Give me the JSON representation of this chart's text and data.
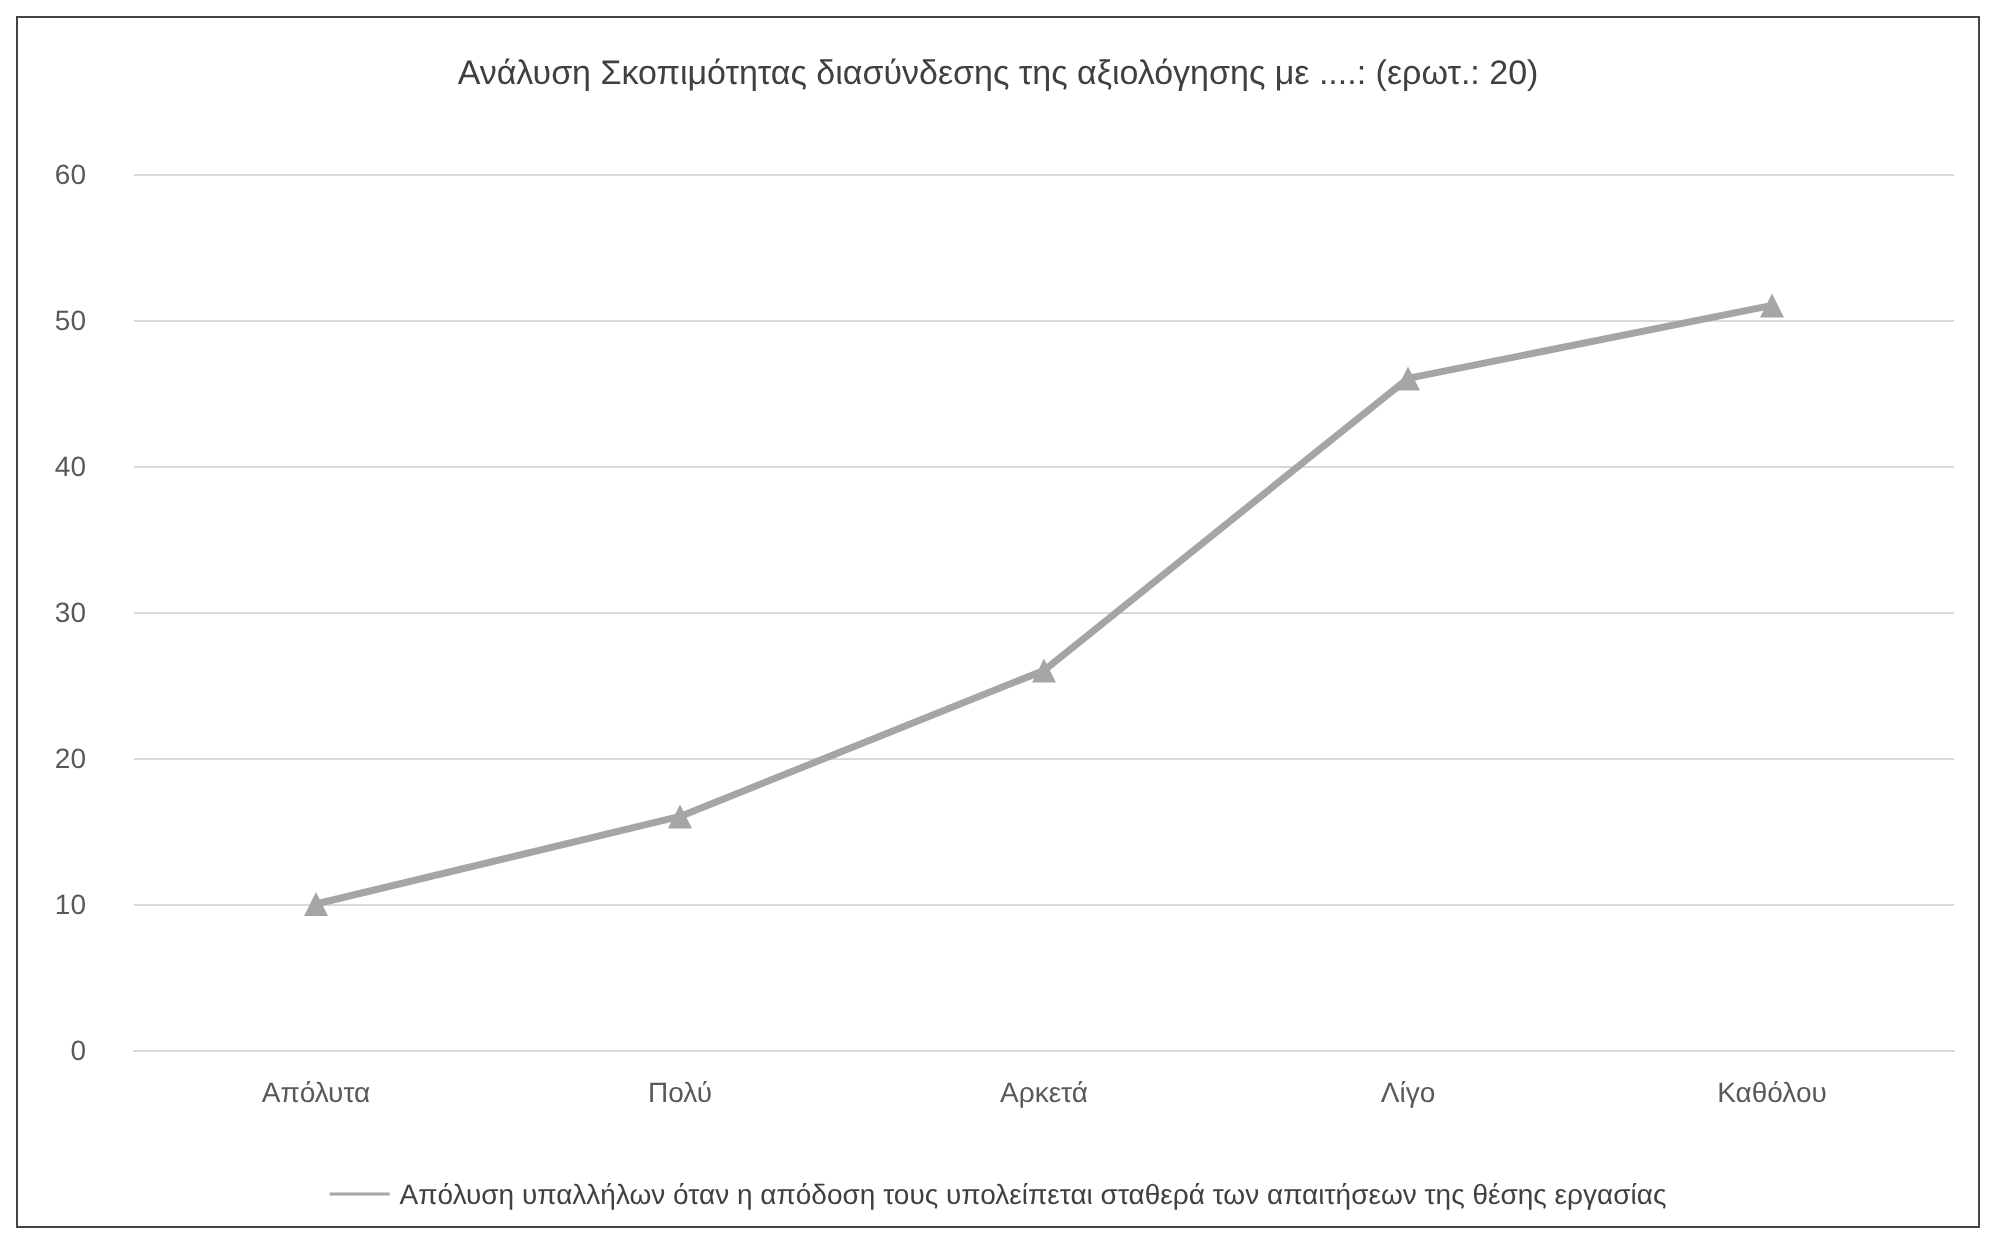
{
  "chart_data": {
    "type": "line",
    "title": "Ανάλυση Σκοπιμότητας διασύνδεσης της αξιολόγησης με ....: (ερωτ.: 20)",
    "categories": [
      "Απόλυτα",
      "Πολύ",
      "Αρκετά",
      "Λίγο",
      "Καθόλου"
    ],
    "series": [
      {
        "name": "Απόλυση υπαλλήλων όταν η απόδοση τους υπολείπεται σταθερά των απαιτήσεων της θέσης εργασίας",
        "color": "#a5a5a5",
        "values": [
          10,
          16,
          26,
          46,
          51
        ]
      }
    ],
    "ylim": [
      0,
      60
    ],
    "yticks": [
      0,
      10,
      20,
      30,
      40,
      50,
      60
    ],
    "grid": "y",
    "legend": "bottom",
    "marker": "triangle",
    "line_style": "solid"
  }
}
